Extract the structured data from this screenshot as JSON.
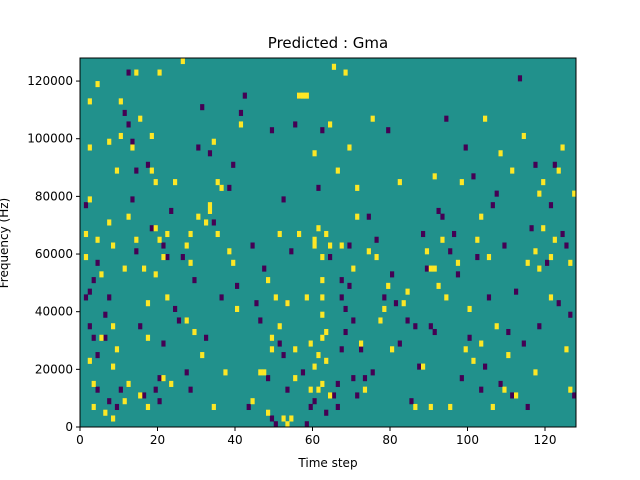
{
  "chart_data": {
    "type": "heatmap",
    "title": "Predicted : Gma",
    "xlabel": "Time step",
    "ylabel": "Frequency (Hz)",
    "xlim": [
      0,
      128
    ],
    "ylim": [
      0,
      128000
    ],
    "x_ticks": [
      0,
      20,
      40,
      60,
      80,
      100,
      120
    ],
    "x_tick_labels": [
      "0",
      "20",
      "40",
      "60",
      "80",
      "100",
      "120"
    ],
    "y_ticks": [
      0,
      20000,
      40000,
      60000,
      80000,
      100000,
      120000
    ],
    "y_tick_labels": [
      "0",
      "20000",
      "40000",
      "60000",
      "80000",
      "100000",
      "120000"
    ],
    "grid": false,
    "colormap": "viridis",
    "levels": [
      -1,
      0,
      1
    ],
    "background_level": 0,
    "level_colors": {
      "-1": "#440154",
      "0": "#21918c",
      "1": "#fde725"
    },
    "cells": {
      "y_bin_height": 2000,
      "bright_cells": [
        [
          1,
          66000
        ],
        [
          1,
          58000
        ],
        [
          2,
          112000
        ],
        [
          2,
          96000
        ],
        [
          2,
          78000
        ],
        [
          2,
          22000
        ],
        [
          3,
          14000
        ],
        [
          3,
          6000
        ],
        [
          4,
          118000
        ],
        [
          4,
          64000
        ],
        [
          5,
          52000
        ],
        [
          5,
          30000
        ],
        [
          6,
          4000
        ],
        [
          7,
          98000
        ],
        [
          7,
          70000
        ],
        [
          8,
          34000
        ],
        [
          8,
          20000
        ],
        [
          8,
          62000
        ],
        [
          8,
          2000
        ],
        [
          9,
          88000
        ],
        [
          9,
          26000
        ],
        [
          10,
          112000
        ],
        [
          10,
          100000
        ],
        [
          11,
          54000
        ],
        [
          11,
          8000
        ],
        [
          12,
          14000
        ],
        [
          12,
          72000
        ],
        [
          13,
          96000
        ],
        [
          14,
          122000
        ],
        [
          14,
          64000
        ],
        [
          15,
          106000
        ],
        [
          15,
          10000
        ],
        [
          16,
          54000
        ],
        [
          17,
          30000
        ],
        [
          17,
          42000
        ],
        [
          17,
          6000
        ],
        [
          18,
          100000
        ],
        [
          18,
          88000
        ],
        [
          19,
          84000
        ],
        [
          19,
          52000
        ],
        [
          19,
          68000
        ],
        [
          20,
          122000
        ],
        [
          20,
          64000
        ],
        [
          21,
          58000
        ],
        [
          21,
          16000
        ],
        [
          22,
          44000
        ],
        [
          22,
          66000
        ],
        [
          23,
          14000
        ],
        [
          24,
          84000
        ],
        [
          26,
          126000
        ],
        [
          27,
          62000
        ],
        [
          27,
          36000
        ],
        [
          28,
          56000
        ],
        [
          28,
          66000
        ],
        [
          29,
          32000
        ],
        [
          30,
          72000
        ],
        [
          31,
          24000
        ],
        [
          32,
          70000
        ],
        [
          33,
          74000
        ],
        [
          33,
          76000
        ],
        [
          34,
          98000
        ],
        [
          34,
          6000
        ],
        [
          35,
          84000
        ],
        [
          35,
          66000
        ],
        [
          36,
          82000
        ],
        [
          37,
          18000
        ],
        [
          38,
          60000
        ],
        [
          39,
          56000
        ],
        [
          40,
          40000
        ],
        [
          41,
          104000
        ],
        [
          44,
          8000
        ],
        [
          46,
          18000
        ],
        [
          47,
          18000
        ],
        [
          48,
          4000
        ],
        [
          48,
          50000
        ],
        [
          49,
          30000
        ],
        [
          49,
          26000
        ],
        [
          50,
          44000
        ],
        [
          51,
          34000
        ],
        [
          51,
          66000
        ],
        [
          52,
          2000
        ],
        [
          53,
          42000
        ],
        [
          53,
          0
        ],
        [
          54,
          2000
        ],
        [
          55,
          16000
        ],
        [
          55,
          26000
        ],
        [
          56,
          66000
        ],
        [
          56,
          114000
        ],
        [
          57,
          114000
        ],
        [
          58,
          114000
        ],
        [
          58,
          44000
        ],
        [
          59,
          12000
        ],
        [
          59,
          28000
        ],
        [
          60,
          94000
        ],
        [
          60,
          20000
        ],
        [
          60,
          62000
        ],
        [
          60,
          64000
        ],
        [
          61,
          68000
        ],
        [
          61,
          12000
        ],
        [
          61,
          24000
        ],
        [
          62,
          58000
        ],
        [
          62,
          50000
        ],
        [
          62,
          44000
        ],
        [
          62,
          38000
        ],
        [
          62,
          30000
        ],
        [
          62,
          14000
        ],
        [
          63,
          66000
        ],
        [
          63,
          32000
        ],
        [
          63,
          22000
        ],
        [
          64,
          104000
        ],
        [
          64,
          62000
        ],
        [
          64,
          10000
        ],
        [
          65,
          124000
        ],
        [
          66,
          88000
        ],
        [
          67,
          62000
        ],
        [
          68,
          122000
        ],
        [
          69,
          96000
        ],
        [
          70,
          54000
        ],
        [
          71,
          82000
        ],
        [
          71,
          72000
        ],
        [
          72,
          28000
        ],
        [
          73,
          12000
        ],
        [
          74,
          60000
        ],
        [
          75,
          106000
        ],
        [
          76,
          58000
        ],
        [
          77,
          36000
        ],
        [
          78,
          40000
        ],
        [
          79,
          48000
        ],
        [
          80,
          26000
        ],
        [
          82,
          84000
        ],
        [
          83,
          42000
        ],
        [
          84,
          46000
        ],
        [
          86,
          6000
        ],
        [
          88,
          20000
        ],
        [
          89,
          60000
        ],
        [
          90,
          54000
        ],
        [
          90,
          6000
        ],
        [
          91,
          86000
        ],
        [
          91,
          54000
        ],
        [
          92,
          48000
        ],
        [
          93,
          64000
        ],
        [
          94,
          44000
        ],
        [
          95,
          6000
        ],
        [
          97,
          56000
        ],
        [
          98,
          84000
        ],
        [
          99,
          26000
        ],
        [
          100,
          40000
        ],
        [
          101,
          22000
        ],
        [
          102,
          64000
        ],
        [
          103,
          72000
        ],
        [
          103,
          28000
        ],
        [
          104,
          106000
        ],
        [
          105,
          58000
        ],
        [
          106,
          6000
        ],
        [
          107,
          34000
        ],
        [
          108,
          94000
        ],
        [
          109,
          12000
        ],
        [
          110,
          24000
        ],
        [
          111,
          88000
        ],
        [
          112,
          10000
        ],
        [
          114,
          100000
        ],
        [
          115,
          56000
        ],
        [
          117,
          60000
        ],
        [
          117,
          18000
        ],
        [
          118,
          54000
        ],
        [
          118,
          80000
        ],
        [
          119,
          84000
        ],
        [
          119,
          68000
        ],
        [
          121,
          44000
        ],
        [
          121,
          58000
        ],
        [
          122,
          64000
        ],
        [
          123,
          88000
        ],
        [
          124,
          96000
        ],
        [
          125,
          26000
        ],
        [
          126,
          12000
        ],
        [
          126,
          56000
        ],
        [
          127,
          80000
        ]
      ],
      "dark_cells": [
        [
          1,
          76000
        ],
        [
          1,
          44000
        ],
        [
          2,
          34000
        ],
        [
          2,
          46000
        ],
        [
          3,
          50000
        ],
        [
          3,
          30000
        ],
        [
          4,
          24000
        ],
        [
          4,
          12000
        ],
        [
          4,
          56000
        ],
        [
          6,
          30000
        ],
        [
          6,
          38000
        ],
        [
          7,
          44000
        ],
        [
          7,
          8000
        ],
        [
          9,
          6000
        ],
        [
          10,
          12000
        ],
        [
          11,
          108000
        ],
        [
          12,
          104000
        ],
        [
          12,
          122000
        ],
        [
          13,
          98000
        ],
        [
          13,
          78000
        ],
        [
          14,
          60000
        ],
        [
          14,
          88000
        ],
        [
          15,
          34000
        ],
        [
          16,
          10000
        ],
        [
          17,
          90000
        ],
        [
          18,
          68000
        ],
        [
          19,
          12000
        ],
        [
          20,
          8000
        ],
        [
          20,
          16000
        ],
        [
          21,
          28000
        ],
        [
          21,
          62000
        ],
        [
          22,
          58000
        ],
        [
          23,
          74000
        ],
        [
          24,
          40000
        ],
        [
          25,
          36000
        ],
        [
          26,
          58000
        ],
        [
          27,
          18000
        ],
        [
          28,
          12000
        ],
        [
          29,
          50000
        ],
        [
          30,
          96000
        ],
        [
          31,
          110000
        ],
        [
          32,
          30000
        ],
        [
          33,
          94000
        ],
        [
          34,
          70000
        ],
        [
          36,
          44000
        ],
        [
          38,
          82000
        ],
        [
          39,
          90000
        ],
        [
          40,
          48000
        ],
        [
          41,
          108000
        ],
        [
          42,
          114000
        ],
        [
          43,
          6000
        ],
        [
          44,
          62000
        ],
        [
          45,
          42000
        ],
        [
          46,
          36000
        ],
        [
          47,
          54000
        ],
        [
          48,
          16000
        ],
        [
          49,
          102000
        ],
        [
          49,
          2000
        ],
        [
          50,
          0
        ],
        [
          51,
          28000
        ],
        [
          52,
          24000
        ],
        [
          52,
          78000
        ],
        [
          53,
          12000
        ],
        [
          53,
          42000
        ],
        [
          54,
          60000
        ],
        [
          55,
          104000
        ],
        [
          56,
          114000
        ],
        [
          57,
          18000
        ],
        [
          58,
          0
        ],
        [
          59,
          6000
        ],
        [
          60,
          8000
        ],
        [
          61,
          82000
        ],
        [
          62,
          102000
        ],
        [
          63,
          4000
        ],
        [
          64,
          58000
        ],
        [
          65,
          10000
        ],
        [
          66,
          6000
        ],
        [
          66,
          14000
        ],
        [
          67,
          26000
        ],
        [
          67,
          44000
        ],
        [
          67,
          50000
        ],
        [
          68,
          32000
        ],
        [
          68,
          40000
        ],
        [
          69,
          62000
        ],
        [
          69,
          48000
        ],
        [
          70,
          36000
        ],
        [
          70,
          16000
        ],
        [
          71,
          10000
        ],
        [
          72,
          26000
        ],
        [
          73,
          16000
        ],
        [
          74,
          72000
        ],
        [
          75,
          18000
        ],
        [
          76,
          64000
        ],
        [
          78,
          44000
        ],
        [
          79,
          102000
        ],
        [
          80,
          52000
        ],
        [
          81,
          42000
        ],
        [
          82,
          28000
        ],
        [
          84,
          36000
        ],
        [
          85,
          8000
        ],
        [
          86,
          34000
        ],
        [
          87,
          20000
        ],
        [
          88,
          66000
        ],
        [
          89,
          54000
        ],
        [
          90,
          34000
        ],
        [
          91,
          32000
        ],
        [
          92,
          74000
        ],
        [
          93,
          72000
        ],
        [
          94,
          106000
        ],
        [
          95,
          60000
        ],
        [
          96,
          66000
        ],
        [
          97,
          52000
        ],
        [
          98,
          16000
        ],
        [
          99,
          96000
        ],
        [
          100,
          30000
        ],
        [
          101,
          86000
        ],
        [
          102,
          58000
        ],
        [
          103,
          12000
        ],
        [
          104,
          20000
        ],
        [
          105,
          44000
        ],
        [
          106,
          76000
        ],
        [
          107,
          80000
        ],
        [
          108,
          14000
        ],
        [
          109,
          62000
        ],
        [
          110,
          32000
        ],
        [
          111,
          10000
        ],
        [
          112,
          46000
        ],
        [
          113,
          120000
        ],
        [
          114,
          28000
        ],
        [
          115,
          6000
        ],
        [
          116,
          68000
        ],
        [
          117,
          90000
        ],
        [
          118,
          34000
        ],
        [
          120,
          56000
        ],
        [
          121,
          76000
        ],
        [
          122,
          90000
        ],
        [
          123,
          42000
        ],
        [
          124,
          66000
        ],
        [
          125,
          62000
        ],
        [
          126,
          38000
        ],
        [
          127,
          10000
        ]
      ]
    }
  }
}
